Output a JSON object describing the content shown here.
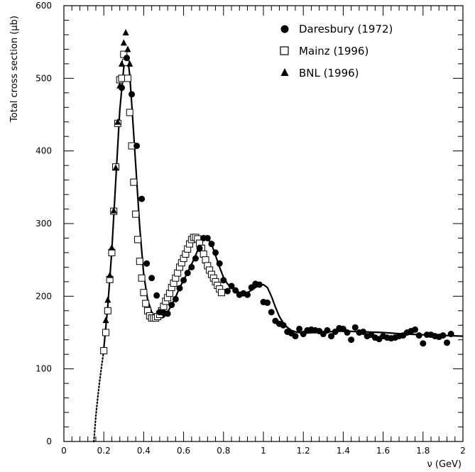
{
  "chart_data": {
    "type": "scatter",
    "xlabel": "ν  (GeV)",
    "ylabel": "Total cross section  (μb)",
    "xlim": [
      0,
      2
    ],
    "ylim": [
      0,
      600
    ],
    "x_ticks": [
      "0",
      "0.2",
      "0.4",
      "0.6",
      "0.8",
      "1",
      "1.2",
      "1.4",
      "1.6",
      "1.8",
      "2"
    ],
    "y_ticks": [
      "0",
      "100",
      "200",
      "300",
      "400",
      "500",
      "600"
    ],
    "legend_position": "top-right",
    "series": [
      {
        "name": "Daresbury (1972)",
        "marker": "circle-filled",
        "x": [
          0.29,
          0.315,
          0.34,
          0.365,
          0.39,
          0.415,
          0.44,
          0.465,
          0.48,
          0.5,
          0.52,
          0.54,
          0.56,
          0.58,
          0.6,
          0.62,
          0.64,
          0.66,
          0.68,
          0.7,
          0.72,
          0.74,
          0.76,
          0.78,
          0.8,
          0.82,
          0.84,
          0.86,
          0.88,
          0.9,
          0.92,
          0.94,
          0.96,
          0.98,
          1.0,
          1.02,
          1.04,
          1.06,
          1.08,
          1.1,
          1.12,
          1.14,
          1.16,
          1.18,
          1.2,
          1.22,
          1.24,
          1.26,
          1.28,
          1.3,
          1.32,
          1.34,
          1.36,
          1.38,
          1.4,
          1.42,
          1.44,
          1.46,
          1.48,
          1.5,
          1.52,
          1.54,
          1.56,
          1.58,
          1.6,
          1.62,
          1.64,
          1.66,
          1.68,
          1.7,
          1.72,
          1.74,
          1.76,
          1.78,
          1.8,
          1.82,
          1.84,
          1.86,
          1.88,
          1.9,
          1.92,
          1.94
        ],
        "y": [
          487,
          528,
          478,
          407,
          334,
          245,
          225,
          201,
          178,
          177,
          176,
          188,
          196,
          211,
          222,
          232,
          240,
          252,
          266,
          280,
          280,
          272,
          260,
          245,
          222,
          207,
          214,
          208,
          202,
          204,
          202,
          212,
          217,
          216,
          192,
          191,
          178,
          166,
          162,
          160,
          151,
          149,
          145,
          155,
          148,
          153,
          154,
          153,
          152,
          148,
          153,
          145,
          151,
          156,
          155,
          150,
          140,
          157,
          150,
          151,
          145,
          147,
          143,
          141,
          145,
          143,
          142,
          143,
          145,
          146,
          150,
          152,
          154,
          146,
          135,
          147,
          147,
          145,
          144,
          146,
          136,
          148
        ]
      },
      {
        "name": "Mainz (1996)",
        "marker": "square-open",
        "x": [
          0.2,
          0.21,
          0.22,
          0.23,
          0.24,
          0.25,
          0.26,
          0.27,
          0.28,
          0.29,
          0.3,
          0.31,
          0.32,
          0.33,
          0.34,
          0.35,
          0.36,
          0.37,
          0.38,
          0.39,
          0.4,
          0.41,
          0.42,
          0.43,
          0.44,
          0.45,
          0.46,
          0.47,
          0.48,
          0.49,
          0.5,
          0.51,
          0.52,
          0.53,
          0.54,
          0.55,
          0.56,
          0.57,
          0.58,
          0.59,
          0.6,
          0.61,
          0.62,
          0.63,
          0.64,
          0.65,
          0.66,
          0.67,
          0.68,
          0.69,
          0.7,
          0.71,
          0.72,
          0.73,
          0.74,
          0.75,
          0.76,
          0.77,
          0.78,
          0.79
        ],
        "y": [
          125,
          150,
          180,
          223,
          260,
          317,
          378,
          438,
          498,
          500,
          533,
          522,
          500,
          453,
          407,
          357,
          313,
          278,
          248,
          225,
          205,
          190,
          180,
          173,
          170,
          170,
          170,
          172,
          175,
          180,
          186,
          193,
          198,
          204,
          212,
          218,
          225,
          232,
          240,
          246,
          252,
          258,
          265,
          272,
          278,
          281,
          281,
          279,
          273,
          266,
          258,
          250,
          242,
          236,
          230,
          225,
          220,
          215,
          210,
          205
        ]
      },
      {
        "name": "BNL (1996)",
        "marker": "triangle-filled",
        "x": [
          0.21,
          0.22,
          0.23,
          0.24,
          0.25,
          0.26,
          0.27,
          0.28,
          0.29,
          0.3,
          0.31,
          0.32,
          0.33
        ],
        "y": [
          167,
          195,
          229,
          267,
          318,
          377,
          440,
          490,
          520,
          549,
          563,
          540,
          520
        ]
      }
    ],
    "fit_curve": {
      "x": [
        0.2,
        0.22,
        0.24,
        0.26,
        0.28,
        0.3,
        0.31,
        0.32,
        0.33,
        0.34,
        0.36,
        0.38,
        0.4,
        0.42,
        0.44,
        0.46,
        0.48,
        0.5,
        0.52,
        0.54,
        0.56,
        0.58,
        0.6,
        0.62,
        0.64,
        0.66,
        0.68,
        0.7,
        0.72,
        0.74,
        0.76,
        0.78,
        0.8,
        0.82,
        0.84,
        0.86,
        0.88,
        0.9,
        0.92,
        0.94,
        0.96,
        0.98,
        1.0,
        1.02,
        1.04,
        1.06,
        1.08,
        1.1,
        1.12,
        1.14,
        1.16,
        1.18,
        1.2,
        1.3,
        1.4,
        1.5,
        1.6,
        1.7,
        1.8,
        1.9,
        2.0
      ],
      "y": [
        128,
        186,
        262,
        360,
        456,
        515,
        530,
        528,
        505,
        465,
        380,
        295,
        230,
        195,
        178,
        171,
        170,
        171,
        178,
        188,
        199,
        212,
        222,
        233,
        244,
        256,
        270,
        279,
        280,
        272,
        256,
        240,
        226,
        217,
        212,
        208,
        205,
        204,
        205,
        208,
        212,
        215,
        216,
        212,
        200,
        185,
        172,
        163,
        157,
        153,
        151,
        150,
        149,
        151,
        152,
        151,
        150,
        148,
        147,
        146,
        145
      ]
    },
    "threshold_curve": {
      "style": "dotted",
      "x": [
        0.15,
        0.16,
        0.17,
        0.18,
        0.19,
        0.2
      ],
      "y": [
        0,
        35,
        62,
        85,
        106,
        125
      ]
    }
  }
}
